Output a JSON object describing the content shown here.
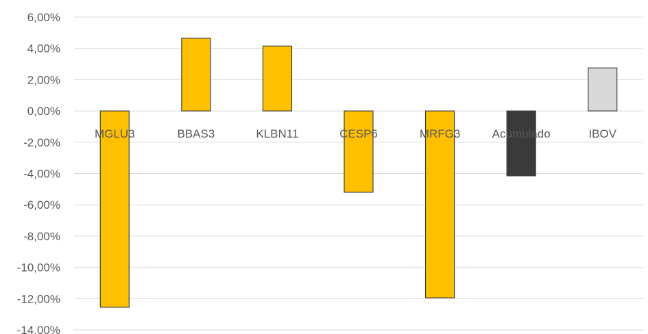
{
  "chart_data": {
    "type": "bar",
    "title": "",
    "xlabel": "",
    "ylabel": "",
    "categories": [
      "MGLU3",
      "BBAS3",
      "KLBN11",
      "CESP6",
      "MRFG3",
      "Acumulado",
      "IBOV"
    ],
    "values": [
      -12.55,
      4.65,
      4.15,
      -5.2,
      -11.95,
      -4.15,
      2.75
    ],
    "ylim": [
      -14,
      6
    ],
    "yticks": [
      6,
      4,
      2,
      0,
      -2,
      -4,
      -6,
      -8,
      -10,
      -12,
      -14
    ],
    "ytick_labels": [
      "6,00%",
      "4,00%",
      "2,00%",
      "0,00%",
      "-2,00%",
      "-4,00%",
      "-6,00%",
      "-8,00%",
      "-10,00%",
      "-12,00%",
      "-14,00%"
    ],
    "grid": true,
    "bar_colors": [
      "#ffc000",
      "#ffc000",
      "#ffc000",
      "#ffc000",
      "#ffc000",
      "#3a3a3a",
      "#d9d9d9"
    ]
  }
}
